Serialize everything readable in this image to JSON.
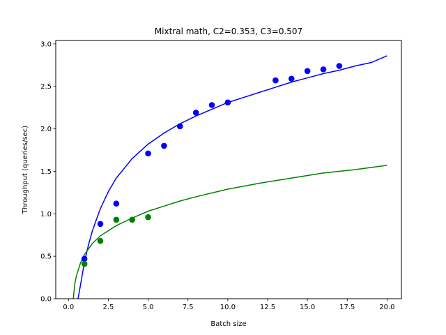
{
  "chart_data": {
    "type": "scatter",
    "title": "Mixtral math, C2=0.353, C3=0.507",
    "xlabel": "Batch size",
    "ylabel": "Throughput (queries/sec)",
    "xlim": [
      -0.8,
      20.9
    ],
    "ylim": [
      0,
      3.04
    ],
    "xticks": [
      0.0,
      2.5,
      5.0,
      7.5,
      10.0,
      12.5,
      15.0,
      17.5,
      20.0
    ],
    "xtick_labels": [
      "0.0",
      "2.5",
      "5.0",
      "7.5",
      "10.0",
      "12.5",
      "15.0",
      "17.5",
      "20.0"
    ],
    "yticks": [
      0.0,
      0.5,
      1.0,
      1.5,
      2.0,
      2.5,
      3.0
    ],
    "ytick_labels": [
      "0.0",
      "0.5",
      "1.0",
      "1.5",
      "2.0",
      "2.5",
      "3.0"
    ],
    "grid": false,
    "series": [
      {
        "color": "#0000ff",
        "points": {
          "x": [
            1,
            2,
            3,
            5,
            6,
            7,
            8,
            9,
            10,
            13,
            14,
            15,
            16,
            17
          ],
          "y": [
            0.47,
            0.88,
            1.12,
            1.71,
            1.8,
            2.03,
            2.19,
            2.28,
            2.31,
            2.57,
            2.59,
            2.68,
            2.7,
            2.74
          ]
        },
        "fit": {
          "x": [
            0.6,
            0.8,
            1.0,
            1.25,
            1.5,
            2,
            2.5,
            3,
            4,
            5,
            6,
            7,
            8,
            9,
            10,
            11,
            12,
            13,
            14,
            15,
            16,
            17,
            18,
            19,
            20
          ],
          "y": [
            0.0,
            0.21,
            0.43,
            0.63,
            0.8,
            1.06,
            1.26,
            1.42,
            1.65,
            1.82,
            1.95,
            2.06,
            2.15,
            2.23,
            2.31,
            2.37,
            2.43,
            2.49,
            2.55,
            2.6,
            2.65,
            2.69,
            2.74,
            2.78,
            2.86
          ]
        }
      },
      {
        "color": "#008000",
        "points": {
          "x": [
            1,
            2,
            3,
            4,
            5
          ],
          "y": [
            0.41,
            0.68,
            0.93,
            0.93,
            0.96
          ]
        },
        "fit": {
          "x": [
            0.3,
            0.4,
            0.5,
            0.75,
            1.0,
            1.5,
            2,
            3,
            4,
            5,
            6,
            7,
            8,
            10,
            12,
            14,
            16,
            18,
            20
          ],
          "y": [
            0.0,
            0.18,
            0.27,
            0.42,
            0.52,
            0.65,
            0.74,
            0.86,
            0.95,
            1.03,
            1.09,
            1.15,
            1.2,
            1.29,
            1.36,
            1.42,
            1.48,
            1.52,
            1.57
          ]
        }
      }
    ]
  }
}
